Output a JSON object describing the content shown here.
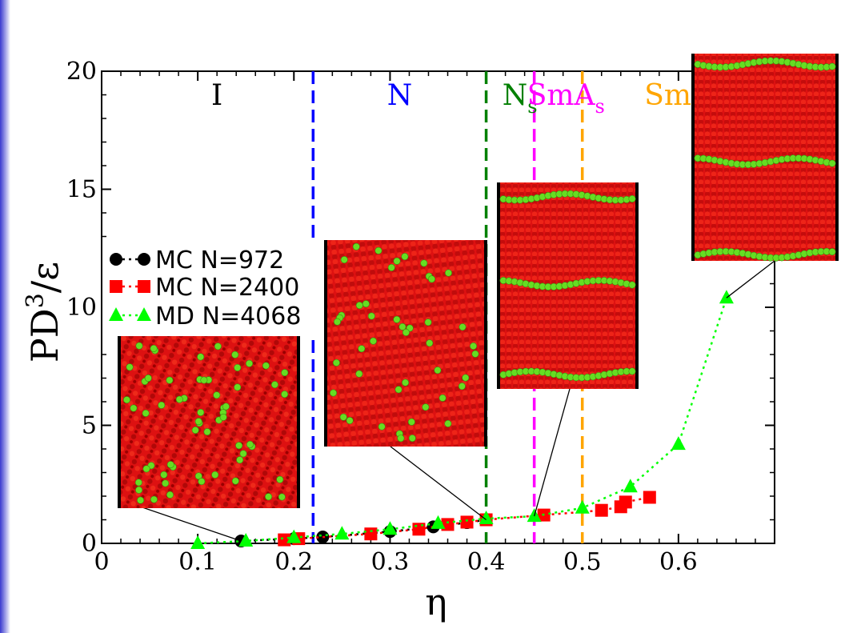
{
  "chart_data": {
    "type": "scatter",
    "title": "",
    "xlabel": "η",
    "ylabel_main": "PD",
    "ylabel_sup": "3",
    "ylabel_tail": "/ε",
    "xlim": [
      0,
      0.7
    ],
    "ylim": [
      0,
      20
    ],
    "xticks": [
      0,
      0.1,
      0.2,
      0.3,
      0.4,
      0.5,
      0.6
    ],
    "xtick_labels": [
      "0",
      "0.1",
      "0.2",
      "0.3",
      "0.4",
      "0.5",
      "0.6"
    ],
    "yticks": [
      0,
      5,
      10,
      15,
      20
    ],
    "ytick_labels": [
      "0",
      "5",
      "10",
      "15",
      "20"
    ],
    "series": [
      {
        "name": "MC N=972",
        "marker": "circle",
        "color": "#000000",
        "x": [
          0.145,
          0.2,
          0.23,
          0.3,
          0.345,
          0.38,
          0.4
        ],
        "y": [
          0.1,
          0.2,
          0.27,
          0.5,
          0.7,
          0.88,
          1.0
        ]
      },
      {
        "name": "MC N=2400",
        "marker": "square",
        "color": "#ff0000",
        "x": [
          0.19,
          0.205,
          0.28,
          0.33,
          0.36,
          0.38,
          0.4,
          0.46,
          0.52,
          0.54,
          0.545,
          0.57
        ],
        "y": [
          0.15,
          0.2,
          0.4,
          0.6,
          0.8,
          0.9,
          1.0,
          1.2,
          1.4,
          1.55,
          1.75,
          1.95
        ]
      },
      {
        "name": "MD N=4068",
        "marker": "triangle",
        "color": "#00ff00",
        "x": [
          0.1,
          0.15,
          0.2,
          0.25,
          0.3,
          0.35,
          0.4,
          0.45,
          0.5,
          0.55,
          0.6,
          0.65
        ],
        "y": [
          0.0,
          0.1,
          0.25,
          0.4,
          0.6,
          0.85,
          1.05,
          1.15,
          1.5,
          2.4,
          4.2,
          10.4
        ]
      }
    ],
    "phase_boundaries": [
      {
        "x": 0.22,
        "color": "#0000ff"
      },
      {
        "x": 0.4,
        "color": "#008000"
      },
      {
        "x": 0.45,
        "color": "#ff00ff"
      },
      {
        "x": 0.5,
        "color": "#ffa500"
      }
    ],
    "phase_labels": [
      {
        "main": "I",
        "sub": "",
        "color": "#000000",
        "x": 0.12
      },
      {
        "main": "N",
        "sub": "",
        "color": "#0000ff",
        "x": 0.31
      },
      {
        "main": "N",
        "sub": "s",
        "color": "#008000",
        "x": 0.435
      },
      {
        "main": "SmA",
        "sub": "s",
        "color": "#ff00ff",
        "x": 0.483
      },
      {
        "main": "SmB",
        "sub": "",
        "color": "#ffa500",
        "x": 0.6
      }
    ],
    "snapshots": [
      {
        "label": "isotropic-snapshot",
        "point": [
          0.145,
          0.1
        ],
        "green_rows": []
      },
      {
        "label": "nematic-snapshot",
        "point": [
          0.4,
          1.0
        ],
        "green_rows": []
      },
      {
        "label": "smectic-a-snapshot",
        "point": [
          0.45,
          1.15
        ],
        "green_rows": [
          0.07,
          0.49,
          0.93
        ]
      },
      {
        "label": "smectic-b-snapshot",
        "point": [
          0.65,
          10.4
        ],
        "green_rows": [
          0.05,
          0.52,
          0.97
        ]
      }
    ],
    "legend_position": "middle-left"
  },
  "style": {
    "accent": "#3333cc",
    "particle_red": "#dd1111",
    "particle_dark": "#a00000",
    "particle_green": "#66dd22"
  }
}
